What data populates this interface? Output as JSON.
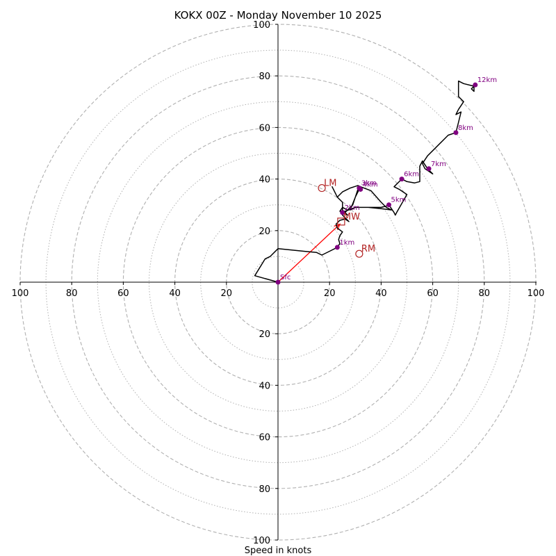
{
  "chart_data": {
    "type": "hodograph",
    "title": "KOKX 00Z - Monday November 10 2025",
    "xlabel": "Speed in knots",
    "units": "knots",
    "max_speed": 100,
    "major_rings": [
      20,
      40,
      60,
      80,
      100
    ],
    "minor_rings": [
      10,
      30,
      50,
      70,
      90
    ],
    "tick_labels": {
      "x_left": [
        "100",
        "80",
        "60",
        "40",
        "20"
      ],
      "x_right": [
        "20",
        "40",
        "60",
        "80",
        "100"
      ],
      "y_top": [
        "100",
        "80",
        "60",
        "40",
        "20"
      ],
      "y_bottom": [
        "20",
        "40",
        "60",
        "80",
        "100"
      ]
    },
    "tick_values": [
      100,
      80,
      60,
      40,
      20
    ],
    "colors": {
      "trace": "#000000",
      "height_markers": "#800080",
      "storm_motion": "#b22222",
      "mean_wind_arrow": "#ff0000",
      "ring": "#b0b0b0"
    },
    "hodograph_trace": [
      [
        0,
        0
      ],
      [
        -9,
        2.5
      ],
      [
        -5,
        9
      ],
      [
        -3,
        10
      ],
      [
        0,
        13
      ],
      [
        5,
        12.5
      ],
      [
        10,
        12
      ],
      [
        15,
        11.5
      ],
      [
        17,
        10.5
      ],
      [
        20,
        12
      ],
      [
        23,
        13.5
      ],
      [
        24,
        15
      ],
      [
        23.5,
        16.5
      ],
      [
        24,
        18
      ],
      [
        25,
        19.5
      ],
      [
        23,
        21
      ],
      [
        22.5,
        22.5
      ],
      [
        24,
        24
      ],
      [
        26,
        24.5
      ],
      [
        27.5,
        23.5
      ],
      [
        25,
        26
      ],
      [
        27,
        28
      ],
      [
        29,
        30
      ],
      [
        31,
        36
      ],
      [
        32,
        37
      ],
      [
        36,
        35.5
      ],
      [
        40,
        31
      ],
      [
        42,
        29
      ],
      [
        44,
        28
      ],
      [
        40,
        28.5
      ],
      [
        35,
        29
      ],
      [
        30,
        29
      ],
      [
        28,
        28
      ],
      [
        30,
        33
      ],
      [
        32,
        37
      ],
      [
        31,
        37.5
      ],
      [
        28,
        36.5
      ],
      [
        25,
        35
      ],
      [
        23,
        33
      ],
      [
        22,
        35
      ],
      [
        21,
        37
      ],
      [
        23,
        33
      ],
      [
        25,
        31
      ],
      [
        25,
        28
      ],
      [
        27,
        26
      ],
      [
        25,
        27
      ],
      [
        25,
        26.8
      ],
      [
        27,
        28
      ],
      [
        25,
        29
      ],
      [
        24,
        27.5
      ],
      [
        26,
        27.5
      ],
      [
        30,
        29
      ],
      [
        35,
        29
      ],
      [
        40,
        29
      ],
      [
        42,
        29.5
      ],
      [
        43,
        30
      ],
      [
        45,
        27
      ],
      [
        45.5,
        26
      ],
      [
        46,
        27
      ],
      [
        50,
        34
      ],
      [
        47,
        36
      ],
      [
        45,
        37
      ],
      [
        48,
        40
      ],
      [
        50,
        39
      ],
      [
        53,
        38.5
      ],
      [
        55,
        39
      ],
      [
        55,
        45
      ],
      [
        56,
        47
      ],
      [
        58,
        44
      ],
      [
        60,
        42
      ],
      [
        57,
        44
      ],
      [
        56,
        46
      ],
      [
        58,
        49
      ],
      [
        60,
        51
      ],
      [
        63,
        54
      ],
      [
        66,
        57
      ],
      [
        69,
        58
      ],
      [
        70,
        62
      ],
      [
        71,
        66
      ],
      [
        69,
        65
      ],
      [
        70,
        67
      ],
      [
        72,
        70
      ],
      [
        70,
        72
      ],
      [
        70,
        75
      ],
      [
        70,
        78
      ],
      [
        72,
        77
      ],
      [
        76,
        76
      ],
      [
        76,
        74
      ],
      [
        75,
        75
      ],
      [
        77,
        77
      ]
    ],
    "height_markers": [
      {
        "label": "Sfc",
        "u": 0,
        "v": 0
      },
      {
        "label": "1km",
        "u": 23,
        "v": 13.5
      },
      {
        "label": "2km",
        "u": 25,
        "v": 27
      },
      {
        "label": "3km",
        "u": 31.5,
        "v": 36.5
      },
      {
        "label": "4km",
        "u": 32,
        "v": 36
      },
      {
        "label": "5km",
        "u": 43,
        "v": 30
      },
      {
        "label": "6km",
        "u": 48,
        "v": 40
      },
      {
        "label": "7km",
        "u": 58.5,
        "v": 44
      },
      {
        "label": "8km",
        "u": 69,
        "v": 58
      },
      {
        "label": "12km",
        "u": 76.5,
        "v": 76.5
      }
    ],
    "storm_motions": [
      {
        "label": "LM",
        "u": 17,
        "v": 36.5,
        "marker": "circle"
      },
      {
        "label": "RM",
        "u": 31.5,
        "v": 11,
        "marker": "circle"
      },
      {
        "label": "MW",
        "u": 24.5,
        "v": 23.5,
        "marker": "square"
      }
    ],
    "mean_wind_arrow": {
      "from": [
        0,
        0
      ],
      "to": [
        24,
        22.5
      ]
    }
  }
}
